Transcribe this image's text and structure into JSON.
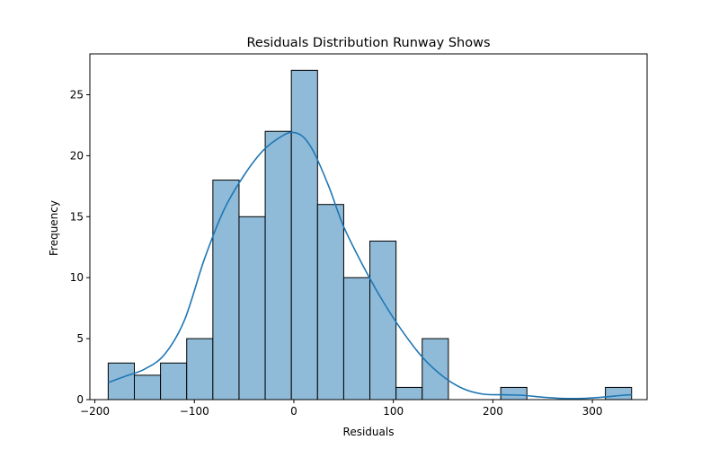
{
  "chart_data": {
    "type": "bar",
    "title": "Residuals Distribution Runway Shows",
    "xlabel": "Residuals",
    "ylabel": "Frequency",
    "xlim": [
      -205,
      355
    ],
    "ylim": [
      0,
      28.35
    ],
    "grid": false,
    "bar_color": "#8fbbd9",
    "bar_edge_color": "#000000",
    "kde_color": "#1f77b4",
    "bins": [
      {
        "x0": -186.6,
        "x1": -160.3,
        "count": 3
      },
      {
        "x0": -160.3,
        "x1": -134.0,
        "count": 2
      },
      {
        "x0": -134.0,
        "x1": -107.7,
        "count": 3
      },
      {
        "x0": -107.7,
        "x1": -81.4,
        "count": 5
      },
      {
        "x0": -81.4,
        "x1": -55.1,
        "count": 18
      },
      {
        "x0": -55.1,
        "x1": -28.8,
        "count": 15
      },
      {
        "x0": -28.8,
        "x1": -2.5,
        "count": 22
      },
      {
        "x0": -2.5,
        "x1": 23.8,
        "count": 27
      },
      {
        "x0": 23.8,
        "x1": 50.1,
        "count": 16
      },
      {
        "x0": 50.1,
        "x1": 76.4,
        "count": 10
      },
      {
        "x0": 76.4,
        "x1": 102.7,
        "count": 13
      },
      {
        "x0": 102.7,
        "x1": 129.0,
        "count": 1
      },
      {
        "x0": 129.0,
        "x1": 155.3,
        "count": 5
      },
      {
        "x0": 155.3,
        "x1": 181.6,
        "count": 0
      },
      {
        "x0": 181.6,
        "x1": 207.9,
        "count": 0
      },
      {
        "x0": 207.9,
        "x1": 234.2,
        "count": 1
      },
      {
        "x0": 234.2,
        "x1": 260.5,
        "count": 0
      },
      {
        "x0": 260.5,
        "x1": 286.8,
        "count": 0
      },
      {
        "x0": 286.8,
        "x1": 313.1,
        "count": 0
      },
      {
        "x0": 313.1,
        "x1": 339.4,
        "count": 1
      }
    ],
    "kde": {
      "x": [
        -186.6,
        -170,
        -150,
        -130,
        -110,
        -90,
        -70,
        -50,
        -30,
        -10,
        0,
        10,
        20,
        35,
        50,
        70,
        90,
        110,
        130,
        150,
        170,
        190,
        210,
        230,
        250,
        270,
        290,
        310,
        330,
        339.4
      ],
      "y": [
        1.4,
        1.9,
        2.5,
        3.7,
        6.5,
        11.5,
        15.6,
        18.4,
        20.5,
        21.7,
        21.9,
        21.5,
        20.3,
        17.5,
        14.2,
        10.9,
        8.0,
        5.5,
        3.4,
        1.9,
        0.9,
        0.45,
        0.4,
        0.35,
        0.2,
        0.1,
        0.1,
        0.2,
        0.35,
        0.4
      ]
    },
    "x_ticks": [
      -200,
      -100,
      0,
      100,
      200,
      300
    ],
    "x_tick_labels": [
      "−200",
      "−100",
      "0",
      "100",
      "200",
      "300"
    ],
    "y_ticks": [
      0,
      5,
      10,
      15,
      20,
      25
    ],
    "y_tick_labels": [
      "0",
      "5",
      "10",
      "15",
      "20",
      "25"
    ]
  }
}
